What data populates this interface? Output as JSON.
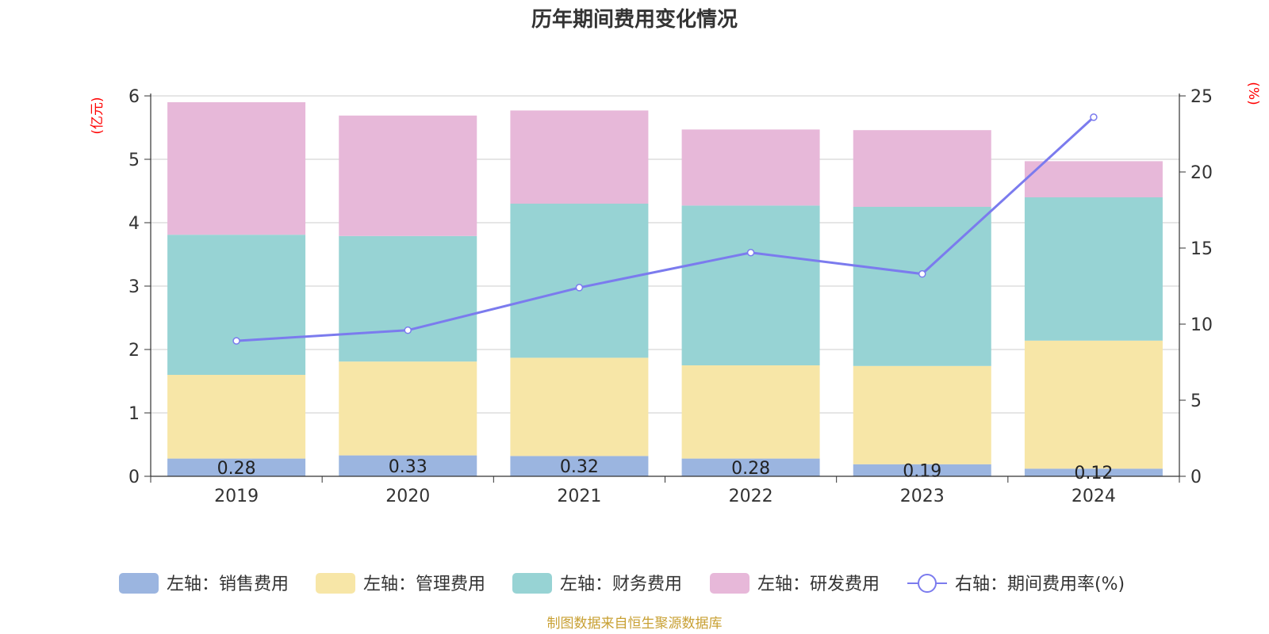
{
  "chart_data": {
    "type": "bar",
    "title": "历年期间费用变化情况",
    "categories": [
      "2019",
      "2020",
      "2021",
      "2022",
      "2023",
      "2024"
    ],
    "y_unit_left": "(亿元)",
    "y_unit_right": "(%)",
    "ylim_left": [
      0,
      6
    ],
    "ylim_right": [
      0,
      25
    ],
    "yticks_left": [
      "0",
      "1",
      "2",
      "3",
      "4",
      "5",
      "6"
    ],
    "yticks_right": [
      "0",
      "5",
      "10",
      "15",
      "20",
      "25"
    ],
    "grid": true,
    "stacked": true,
    "legend_position": "bottom",
    "series": [
      {
        "name": "左轴：销售费用",
        "type": "bar",
        "axis": "left",
        "color": "#9bb5e0",
        "values": [
          0.28,
          0.33,
          0.32,
          0.28,
          0.19,
          0.12
        ],
        "data_labels": [
          "0.28",
          "0.33",
          "0.32",
          "0.28",
          "0.19",
          "0.12"
        ]
      },
      {
        "name": "左轴：管理费用",
        "type": "bar",
        "axis": "left",
        "color": "#f7e6a7",
        "values": [
          1.32,
          1.48,
          1.55,
          1.47,
          1.55,
          2.02
        ]
      },
      {
        "name": "左轴：财务费用",
        "type": "bar",
        "axis": "left",
        "color": "#97d3d4",
        "values": [
          2.21,
          1.98,
          2.43,
          2.52,
          2.51,
          2.26
        ]
      },
      {
        "name": "左轴：研发费用",
        "type": "bar",
        "axis": "left",
        "color": "#e7b8d9",
        "values": [
          2.09,
          1.9,
          1.47,
          1.2,
          1.21,
          0.57
        ]
      },
      {
        "name": "右轴：期间费用率(%)",
        "type": "line",
        "axis": "right",
        "color": "#7b7bee",
        "values": [
          8.9,
          9.6,
          12.4,
          14.7,
          13.3,
          23.6
        ]
      }
    ],
    "source": "制图数据来自恒生聚源数据库"
  }
}
